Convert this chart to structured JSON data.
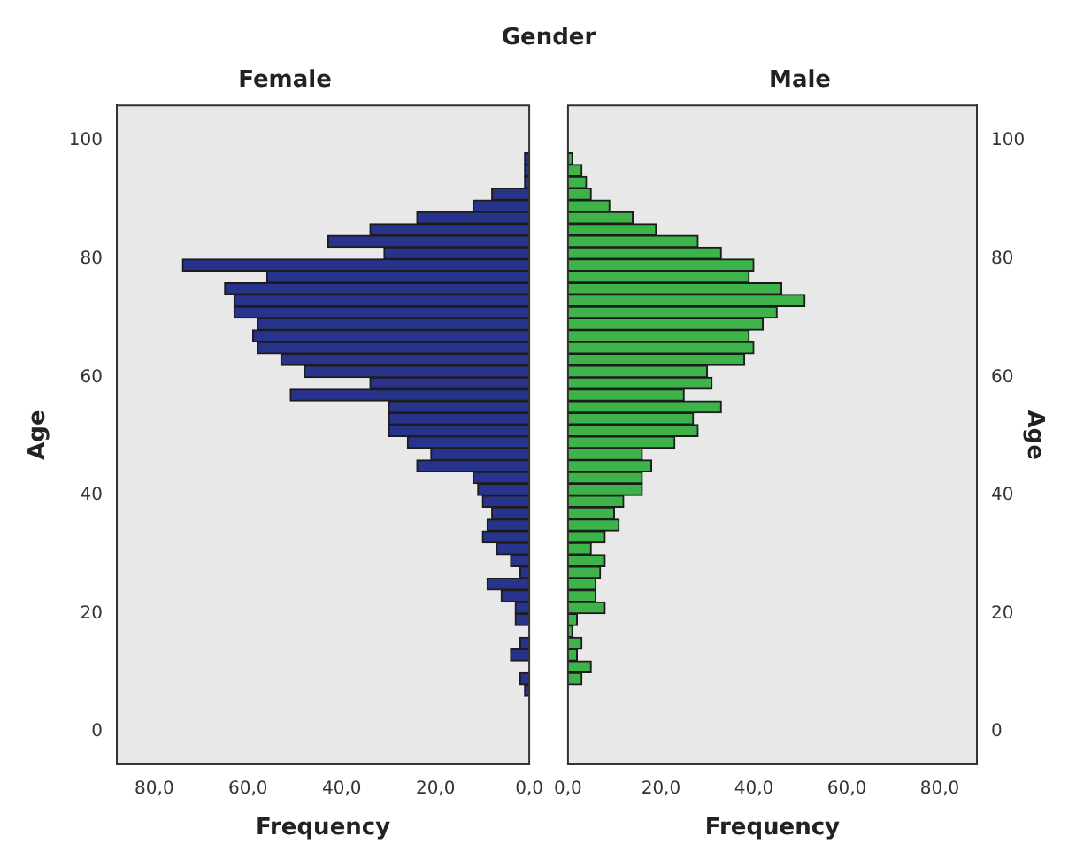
{
  "chart_data": [
    {
      "type": "histogram",
      "orientation": "horizontal",
      "title": "Gender",
      "subtitle": "Female",
      "xlabel": "Frequency",
      "ylabel": "Age",
      "color": "#28348c",
      "bins": [
        6,
        8,
        10,
        12,
        14,
        16,
        18,
        20,
        22,
        24,
        26,
        28,
        30,
        32,
        34,
        36,
        38,
        40,
        42,
        44,
        46,
        48,
        50,
        52,
        54,
        56,
        58,
        60,
        62,
        64,
        66,
        68,
        70,
        72,
        74,
        76,
        78,
        80,
        82,
        84,
        86,
        88,
        90,
        92,
        94,
        96,
        98
      ],
      "values": [
        1,
        2,
        0,
        4,
        2,
        0,
        3,
        3,
        6,
        9,
        2,
        4,
        7,
        10,
        9,
        8,
        10,
        11,
        12,
        24,
        21,
        26,
        30,
        30,
        30,
        51,
        34,
        48,
        53,
        58,
        59,
        58,
        63,
        63,
        65,
        56,
        74,
        31,
        43,
        34,
        24,
        12,
        8,
        1,
        1,
        1
      ],
      "xlim": [
        88,
        0
      ],
      "xticks": [
        {
          "value": 80,
          "label": "80,0"
        },
        {
          "value": 60,
          "label": "60,0"
        },
        {
          "value": 40,
          "label": "40,0"
        },
        {
          "value": 20,
          "label": "20,0"
        },
        {
          "value": 0,
          "label": "0,0"
        }
      ],
      "ylim": [
        -5.5,
        106
      ],
      "yticks": [
        0,
        20,
        40,
        60,
        80,
        100
      ]
    },
    {
      "type": "histogram",
      "orientation": "horizontal",
      "subtitle": "Male",
      "xlabel": "Frequency",
      "ylabel": "Age",
      "color": "#3db34a",
      "bins": [
        6,
        8,
        10,
        12,
        14,
        16,
        18,
        20,
        22,
        24,
        26,
        28,
        30,
        32,
        34,
        36,
        38,
        40,
        42,
        44,
        46,
        48,
        50,
        52,
        54,
        56,
        58,
        60,
        62,
        64,
        66,
        68,
        70,
        72,
        74,
        76,
        78,
        80,
        82,
        84,
        86,
        88,
        90,
        92,
        94,
        96,
        98
      ],
      "values": [
        0,
        3,
        5,
        2,
        3,
        1,
        2,
        8,
        6,
        6,
        7,
        8,
        5,
        8,
        11,
        10,
        12,
        16,
        16,
        18,
        16,
        23,
        28,
        27,
        33,
        25,
        31,
        30,
        38,
        40,
        39,
        42,
        45,
        51,
        46,
        39,
        40,
        33,
        28,
        19,
        14,
        9,
        5,
        4,
        3,
        1
      ],
      "xlim": [
        0,
        88
      ],
      "xticks": [
        {
          "value": 0,
          "label": "0,0"
        },
        {
          "value": 20,
          "label": "20,0"
        },
        {
          "value": 40,
          "label": "40,0"
        },
        {
          "value": 60,
          "label": "60,0"
        },
        {
          "value": 80,
          "label": "80,0"
        }
      ],
      "ylim": [
        -5.5,
        106
      ],
      "yticks": [
        0,
        20,
        40,
        60,
        80,
        100
      ]
    }
  ]
}
